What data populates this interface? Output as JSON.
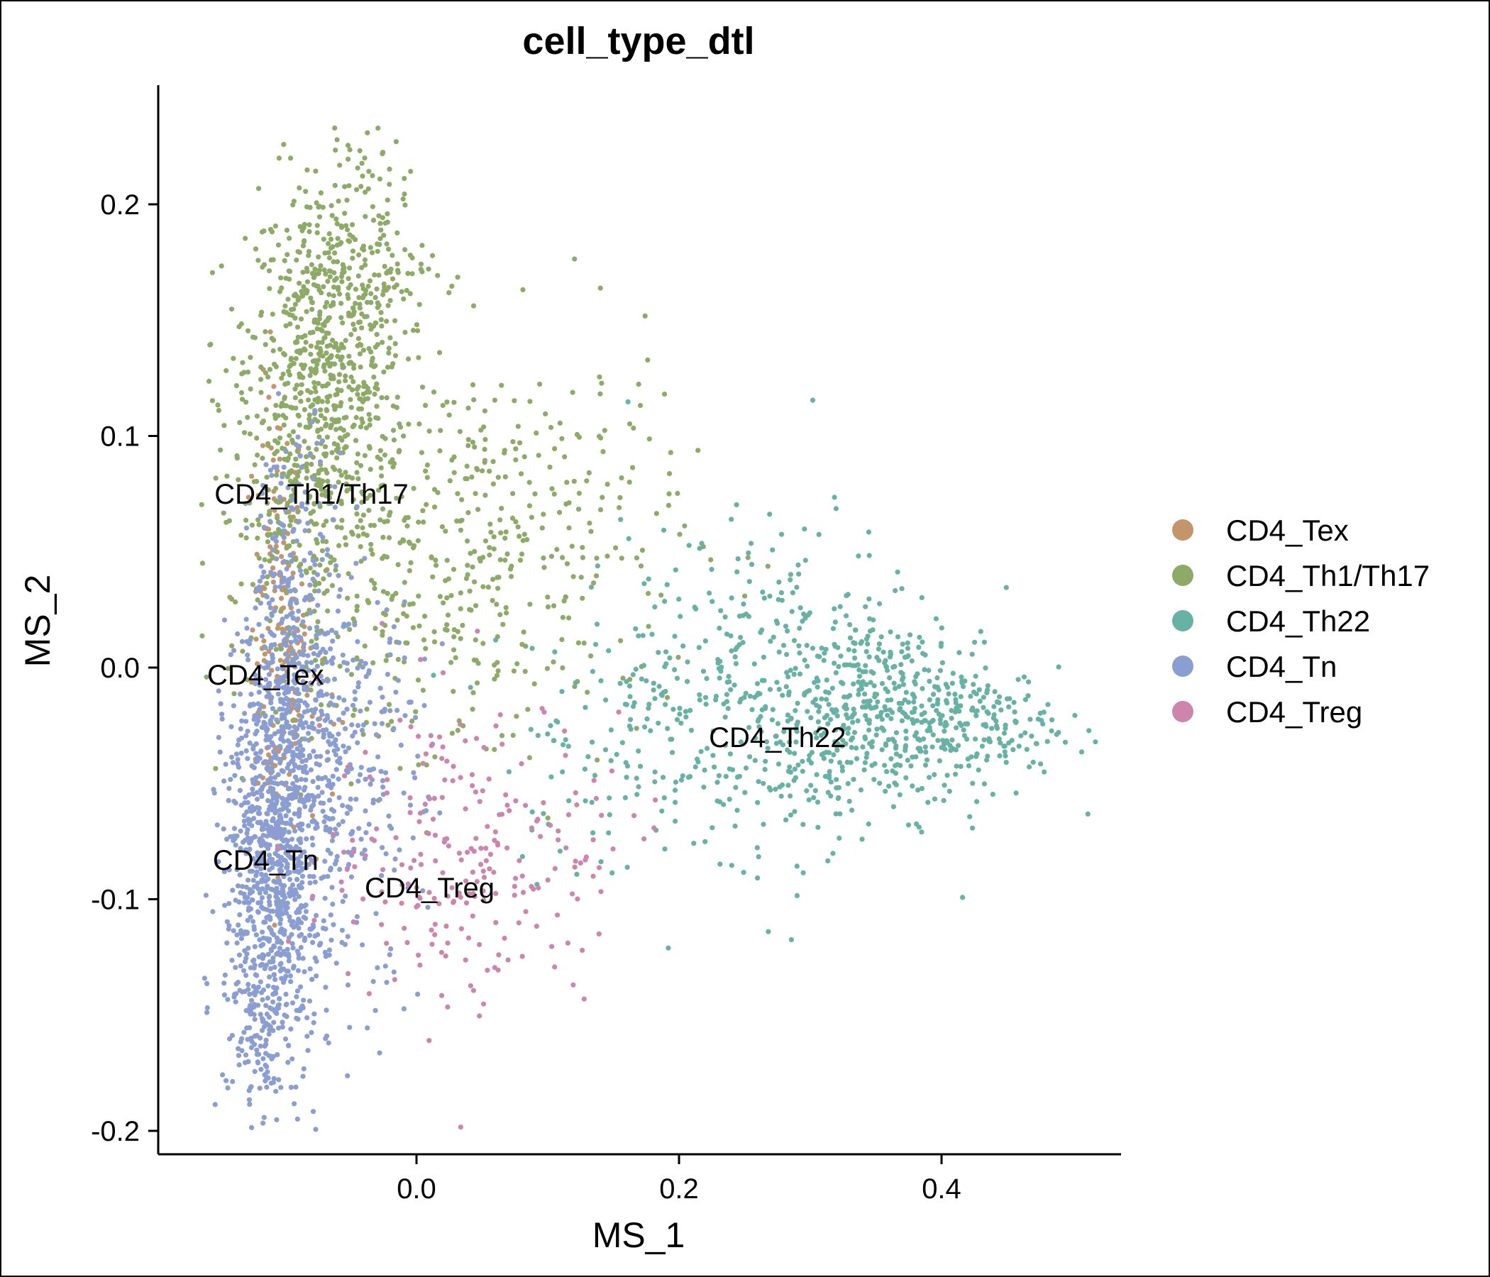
{
  "chart_data": {
    "type": "scatter",
    "title": "cell_type_dtl",
    "xlabel": "MS_1",
    "ylabel": "MS_2",
    "xlim": [
      -0.2,
      0.53
    ],
    "ylim": [
      -0.21,
      0.25
    ],
    "x_ticks": [
      0.0,
      0.2,
      0.4
    ],
    "x_tick_labels": [
      "0.0",
      "0.2",
      "0.4"
    ],
    "y_ticks": [
      -0.2,
      -0.1,
      0.0,
      0.1,
      0.2
    ],
    "y_tick_labels": [
      "-0.2",
      "-0.1",
      "0.0",
      "0.1",
      "0.2"
    ],
    "grid": false,
    "legend_position": "right",
    "series": [
      {
        "name": "CD4_Tex",
        "color": "#C4946A",
        "label_x": -0.115,
        "label_y": -0.003,
        "regions": [
          {
            "cx": -0.105,
            "cy": 0.02,
            "sx": 0.01,
            "sy": 0.05,
            "n": 150
          },
          {
            "cx": -0.09,
            "cy": -0.01,
            "sx": 0.015,
            "sy": 0.035,
            "n": 60
          }
        ]
      },
      {
        "name": "CD4_Th1/Th17",
        "color": "#8DAA66",
        "label_x": -0.08,
        "label_y": 0.075,
        "regions": [
          {
            "cx": -0.07,
            "cy": 0.13,
            "sx": 0.03,
            "sy": 0.04,
            "n": 650
          },
          {
            "cx": -0.085,
            "cy": 0.065,
            "sx": 0.035,
            "sy": 0.04,
            "n": 250
          },
          {
            "cx": 0.06,
            "cy": 0.06,
            "sx": 0.07,
            "sy": 0.04,
            "n": 330
          },
          {
            "cx": 0.0,
            "cy": 0.01,
            "sx": 0.06,
            "sy": 0.035,
            "n": 120
          },
          {
            "cx": -0.04,
            "cy": 0.18,
            "sx": 0.025,
            "sy": 0.025,
            "n": 120
          }
        ]
      },
      {
        "name": "CD4_Th22",
        "color": "#67B2A4",
        "label_x": 0.275,
        "label_y": -0.03,
        "regions": [
          {
            "cx": 0.37,
            "cy": -0.02,
            "sx": 0.05,
            "sy": 0.02,
            "n": 400
          },
          {
            "cx": 0.28,
            "cy": -0.01,
            "sx": 0.06,
            "sy": 0.035,
            "n": 400
          },
          {
            "cx": 0.16,
            "cy": -0.03,
            "sx": 0.05,
            "sy": 0.03,
            "n": 130
          },
          {
            "cx": 0.44,
            "cy": -0.025,
            "sx": 0.03,
            "sy": 0.012,
            "n": 70
          }
        ]
      },
      {
        "name": "CD4_Tn",
        "color": "#8B9ED2",
        "label_x": -0.115,
        "label_y": -0.083,
        "regions": [
          {
            "cx": -0.11,
            "cy": -0.09,
            "sx": 0.018,
            "sy": 0.05,
            "n": 900
          },
          {
            "cx": -0.09,
            "cy": 0.0,
            "sx": 0.018,
            "sy": 0.05,
            "n": 350
          },
          {
            "cx": -0.065,
            "cy": -0.05,
            "sx": 0.035,
            "sy": 0.045,
            "n": 350
          },
          {
            "cx": -0.12,
            "cy": -0.155,
            "sx": 0.01,
            "sy": 0.015,
            "n": 60
          }
        ]
      },
      {
        "name": "CD4_Treg",
        "color": "#CD85AE",
        "label_x": 0.01,
        "label_y": -0.095,
        "regions": [
          {
            "cx": 0.03,
            "cy": -0.08,
            "sx": 0.05,
            "sy": 0.035,
            "n": 200
          },
          {
            "cx": 0.12,
            "cy": -0.08,
            "sx": 0.04,
            "sy": 0.02,
            "n": 40
          }
        ]
      }
    ]
  }
}
